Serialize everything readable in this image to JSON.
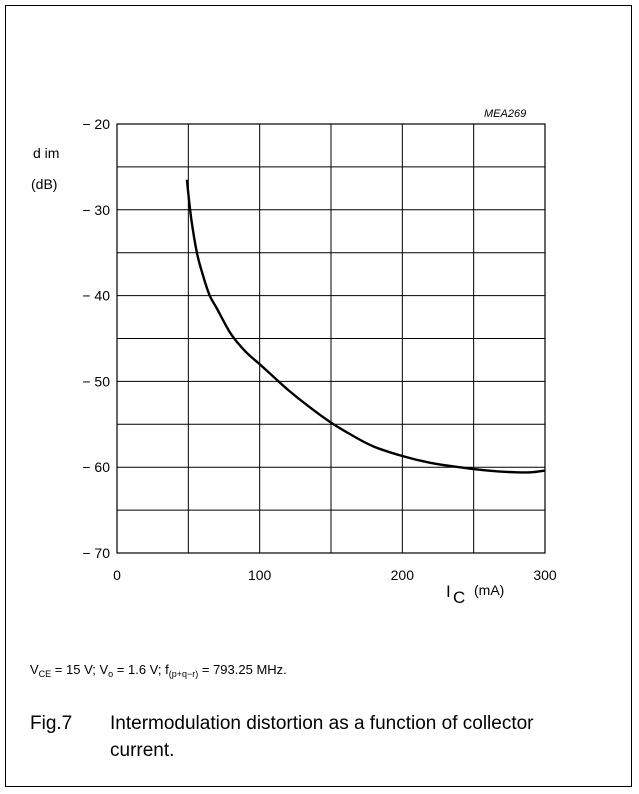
{
  "chart_data": {
    "type": "line",
    "code": "MEA269",
    "xlabel_main": "I",
    "xlabel_sub": "C",
    "xlabel_unit": "(mA)",
    "ylabel_line1": "d im",
    "ylabel_line2": "(dB)",
    "xlim": [
      0,
      300
    ],
    "ylim": [
      -70,
      -20
    ],
    "xticks": [
      0,
      100,
      200,
      300
    ],
    "xtick_labels": [
      "0",
      "100",
      "200",
      "300"
    ],
    "yticks": [
      -20,
      -30,
      -40,
      -50,
      -60,
      -70
    ],
    "ytick_labels": [
      "− 20",
      "− 30",
      "− 40",
      "− 50",
      "− 60",
      "− 70"
    ],
    "grid": true,
    "series": [
      {
        "x": [
          49,
          52,
          56,
          60,
          65,
          70,
          80,
          90,
          100,
          110,
          120,
          135,
          150,
          165,
          180,
          200,
          220,
          240,
          260,
          280,
          290,
          300
        ],
        "y": [
          -26.5,
          -31,
          -35,
          -37.5,
          -40,
          -41.5,
          -44.5,
          -46.5,
          -48,
          -49.5,
          -51,
          -53,
          -54.8,
          -56.3,
          -57.6,
          -58.7,
          -59.5,
          -60,
          -60.4,
          -60.6,
          -60.6,
          -60.4
        ]
      }
    ]
  },
  "conditions": {
    "vce_label": "V",
    "vce_sub": "CE",
    "vce_value": " = 15 V; ",
    "vo_label": "V",
    "vo_sub": "o",
    "vo_value": " = 1.6 V; ",
    "f_label": "f",
    "f_sub": "(p+q−r)",
    "f_value": " = 793.25 MHz."
  },
  "caption": {
    "fig": "Fig.7",
    "text": "Intermodulation distortion as a function of collector current."
  }
}
